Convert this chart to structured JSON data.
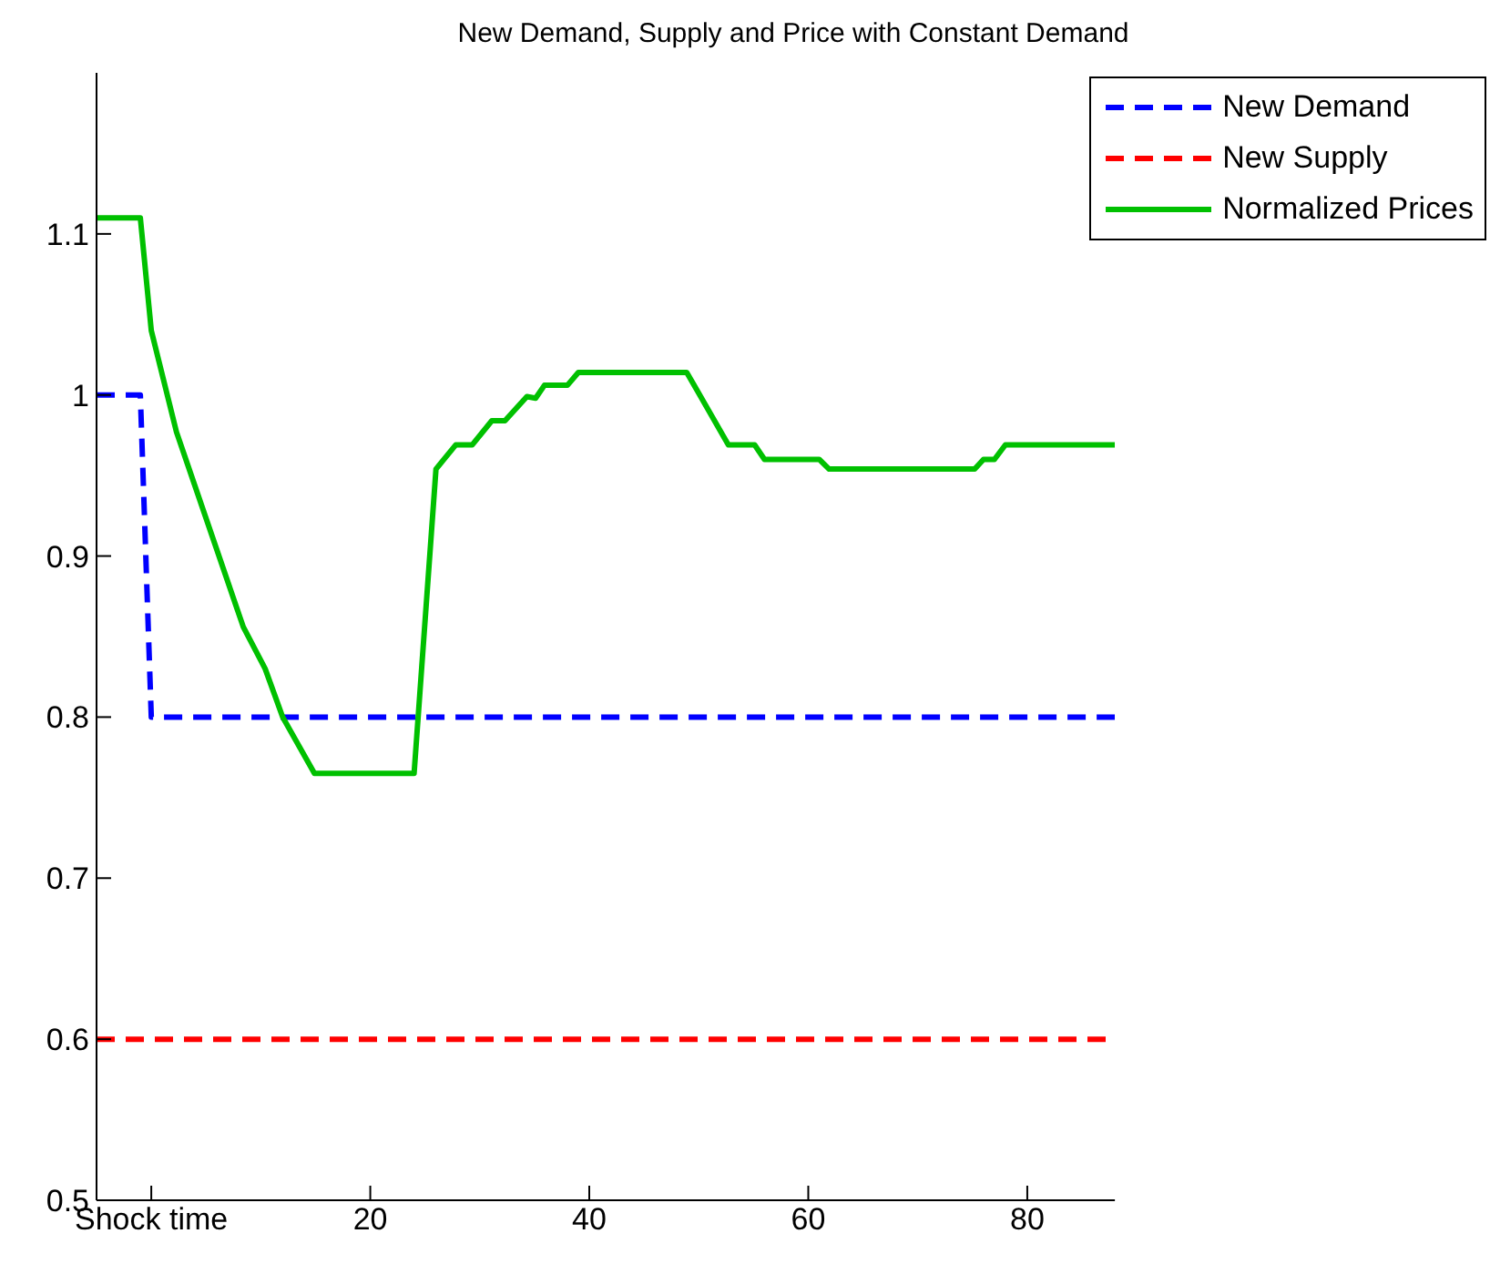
{
  "chart_data": {
    "type": "line",
    "title": "New Demand, Supply and Price with Constant Demand",
    "xlim": [
      -5,
      88
    ],
    "xticks": [
      {
        "value": 0,
        "label": "Shock time"
      },
      20,
      40,
      60,
      80
    ],
    "ylim": [
      0.5,
      1.2
    ],
    "yticks": [
      0.5,
      0.6,
      0.7,
      0.8,
      0.9,
      1,
      1.1
    ],
    "grid": false,
    "legend": "top right",
    "marker": "none",
    "series": [
      {
        "name": "New Demand",
        "color": "#0000ff",
        "line_style": "dashed",
        "x": [
          -5,
          -1,
          -0.5,
          0,
          88
        ],
        "values": [
          1,
          1,
          0.9,
          0.8,
          0.8
        ]
      },
      {
        "name": "New Supply",
        "color": "#ff0000",
        "line_style": "dashed",
        "x": [
          -5,
          88
        ],
        "values": [
          0.6,
          0.6
        ]
      },
      {
        "name": "Normalized Prices",
        "color": "#00c000",
        "line_style": "solid",
        "x": [
          -5,
          -1,
          0,
          2.3,
          8.4,
          10.4,
          12.0,
          14.9,
          24.0,
          26.0,
          27.8,
          29.3,
          31.1,
          32.3,
          34.3,
          35.1,
          35.9,
          38.0,
          39.0,
          48.9,
          52.7,
          55.1,
          56.0,
          61.0,
          61.9,
          75.2,
          76.0,
          77.0,
          78.0,
          88
        ],
        "values": [
          1.11,
          1.11,
          1.04,
          0.977,
          0.856,
          0.83,
          0.8,
          0.765,
          0.765,
          0.954,
          0.969,
          0.969,
          0.984,
          0.984,
          0.999,
          0.998,
          1.006,
          1.006,
          1.014,
          1.014,
          0.969,
          0.969,
          0.96,
          0.96,
          0.954,
          0.954,
          0.96,
          0.96,
          0.969,
          0.969
        ]
      }
    ]
  }
}
